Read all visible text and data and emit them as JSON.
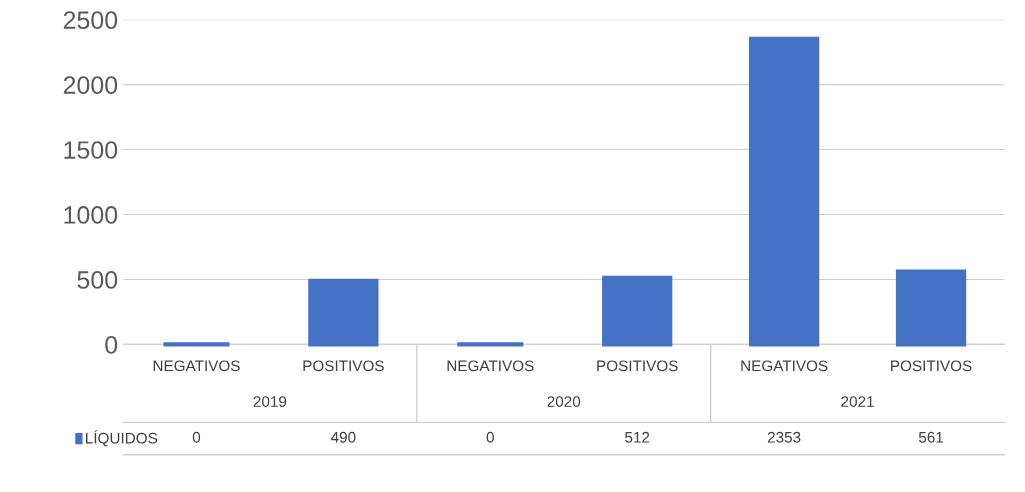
{
  "chart_data": {
    "type": "bar",
    "categories": [
      "NEGATIVOS",
      "POSITIVOS",
      "NEGATIVOS",
      "POSITIVOS",
      "NEGATIVOS",
      "POSITIVOS"
    ],
    "series": [
      {
        "name": "LÍQUIDOS",
        "color": "#4472c4",
        "values": [
          0,
          490,
          0,
          512,
          2353,
          561
        ]
      }
    ],
    "annotations": [
      "2019",
      "2020",
      "2021"
    ],
    "ylim": [
      0,
      2500
    ],
    "yticks": [
      0,
      500,
      1000,
      1500,
      2000,
      2500
    ],
    "grid": "y",
    "data_labels": true
  }
}
